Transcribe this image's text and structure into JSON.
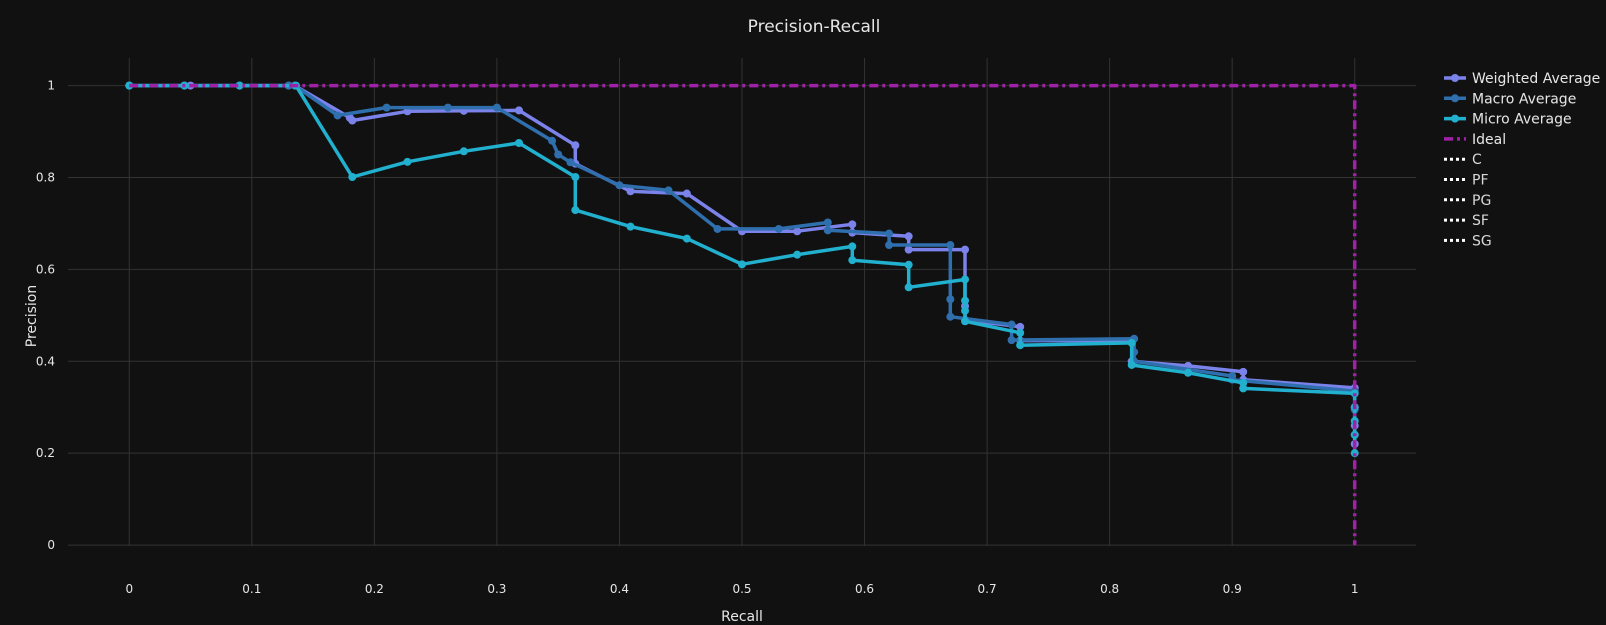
{
  "chart_data": {
    "type": "line",
    "title": "Precision-Recall",
    "xlabel": "Recall",
    "ylabel": "Precision",
    "xlim": [
      -0.05,
      1.05
    ],
    "ylim": [
      -0.002,
      1.06
    ],
    "xticks": [
      0,
      0.1,
      0.2,
      0.3,
      0.4,
      0.5,
      0.6,
      0.7,
      0.8,
      0.9,
      1
    ],
    "xtick_labels": [
      "0",
      "0.1",
      "0.2",
      "0.3",
      "0.4",
      "0.5",
      "0.6",
      "0.7",
      "0.8",
      "0.9",
      "1"
    ],
    "yticks": [
      0,
      0.2,
      0.4,
      0.6,
      0.8,
      1
    ],
    "ytick_labels": [
      "0",
      "0.2",
      "0.4",
      "0.6",
      "0.8",
      "1"
    ],
    "grid": true,
    "legend_position": "top-right",
    "series": [
      {
        "name": "Weighted Average",
        "color": "#7b83eb",
        "style": "solid",
        "markers": true,
        "x": [
          0,
          0.045,
          0.05,
          0.09,
          0.13,
          0.135,
          0.18,
          0.182,
          0.227,
          0.273,
          0.318,
          0.364,
          0.364,
          0.409,
          0.455,
          0.5,
          0.545,
          0.59,
          0.59,
          0.636,
          0.636,
          0.682,
          0.682,
          0.682,
          0.727,
          0.727,
          0.818,
          0.818,
          0.864,
          0.909,
          0.909,
          1,
          1,
          1,
          1
        ],
        "y": [
          1,
          1,
          1,
          1,
          1,
          1,
          0.93,
          0.924,
          0.944,
          0.945,
          0.946,
          0.87,
          0.83,
          0.77,
          0.765,
          0.683,
          0.683,
          0.698,
          0.68,
          0.672,
          0.643,
          0.643,
          0.52,
          0.49,
          0.475,
          0.445,
          0.445,
          0.4,
          0.39,
          0.377,
          0.36,
          0.342,
          0.3,
          0.26,
          0.22
        ]
      },
      {
        "name": "Macro Average",
        "color": "#2f6fad",
        "style": "solid",
        "markers": true,
        "x": [
          0,
          0.045,
          0.09,
          0.13,
          0.135,
          0.17,
          0.21,
          0.26,
          0.3,
          0.345,
          0.35,
          0.36,
          0.4,
          0.44,
          0.48,
          0.53,
          0.57,
          0.57,
          0.62,
          0.62,
          0.67,
          0.67,
          0.67,
          0.72,
          0.72,
          0.82,
          0.82,
          0.82,
          0.9,
          0.9,
          1,
          1,
          1
        ],
        "y": [
          1,
          1,
          1,
          1,
          1,
          0.935,
          0.952,
          0.952,
          0.952,
          0.88,
          0.85,
          0.833,
          0.783,
          0.772,
          0.688,
          0.688,
          0.702,
          0.685,
          0.678,
          0.653,
          0.653,
          0.535,
          0.497,
          0.48,
          0.446,
          0.449,
          0.42,
          0.4,
          0.368,
          0.36,
          0.335,
          0.295,
          0.24
        ]
      },
      {
        "name": "Micro Average",
        "color": "#22b0cf",
        "style": "solid",
        "markers": true,
        "x": [
          0,
          0.045,
          0.09,
          0.136,
          0.182,
          0.227,
          0.273,
          0.318,
          0.364,
          0.364,
          0.409,
          0.455,
          0.5,
          0.545,
          0.59,
          0.59,
          0.636,
          0.636,
          0.682,
          0.682,
          0.682,
          0.682,
          0.727,
          0.727,
          0.818,
          0.818,
          0.864,
          0.909,
          0.909,
          1,
          1,
          1,
          1,
          1
        ],
        "y": [
          1,
          1,
          1,
          1,
          0.801,
          0.834,
          0.857,
          0.875,
          0.801,
          0.729,
          0.693,
          0.667,
          0.611,
          0.632,
          0.65,
          0.62,
          0.61,
          0.561,
          0.578,
          0.532,
          0.51,
          0.487,
          0.462,
          0.435,
          0.44,
          0.392,
          0.375,
          0.353,
          0.341,
          0.33,
          0.3,
          0.27,
          0.24,
          0.2
        ]
      },
      {
        "name": "Ideal",
        "color": "#a020a8",
        "style": "dashdot",
        "markers": false,
        "x": [
          0,
          1,
          1
        ],
        "y": [
          1,
          1,
          0
        ]
      }
    ],
    "legend_extra": [
      {
        "name": "C",
        "color": "#ffffff",
        "style": "dot"
      },
      {
        "name": "PF",
        "color": "#ffffff",
        "style": "dot"
      },
      {
        "name": "PG",
        "color": "#ffffff",
        "style": "dot"
      },
      {
        "name": "SF",
        "color": "#ffffff",
        "style": "dot"
      },
      {
        "name": "SG",
        "color": "#ffffff",
        "style": "dot"
      }
    ],
    "background_color": "#111111",
    "grid_color": "#333333"
  }
}
